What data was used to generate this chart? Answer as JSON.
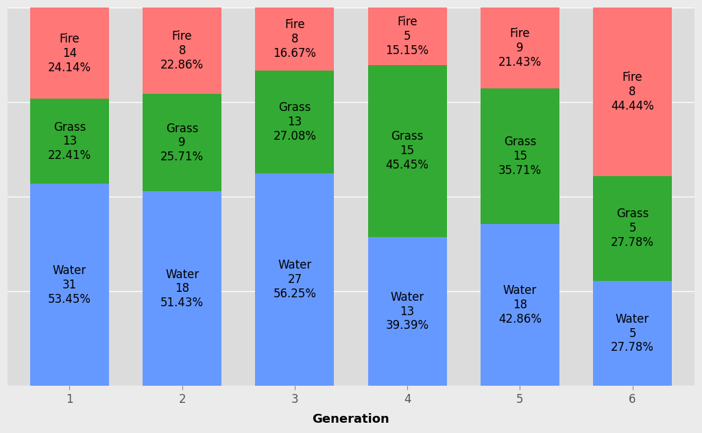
{
  "generations": [
    1,
    2,
    3,
    4,
    5,
    6
  ],
  "water": [
    31,
    18,
    27,
    13,
    18,
    5
  ],
  "grass": [
    13,
    9,
    13,
    15,
    15,
    5
  ],
  "fire": [
    14,
    8,
    8,
    5,
    9,
    8
  ],
  "water_pct": [
    "53.45%",
    "51.43%",
    "56.25%",
    "39.39%",
    "42.86%",
    "27.78%"
  ],
  "grass_pct": [
    "22.41%",
    "25.71%",
    "27.08%",
    "45.45%",
    "35.71%",
    "27.78%"
  ],
  "fire_pct": [
    "24.14%",
    "22.86%",
    "16.67%",
    "15.15%",
    "21.43%",
    "44.44%"
  ],
  "color_water": "#6699FF",
  "color_grass": "#33AA33",
  "color_fire": "#FF7777",
  "background_color": "#EBEBEB",
  "panel_color": "#DCDCDC",
  "grid_color": "#FFFFFF",
  "xlabel": "Generation",
  "bar_width": 0.7,
  "label_fontsize": 12
}
